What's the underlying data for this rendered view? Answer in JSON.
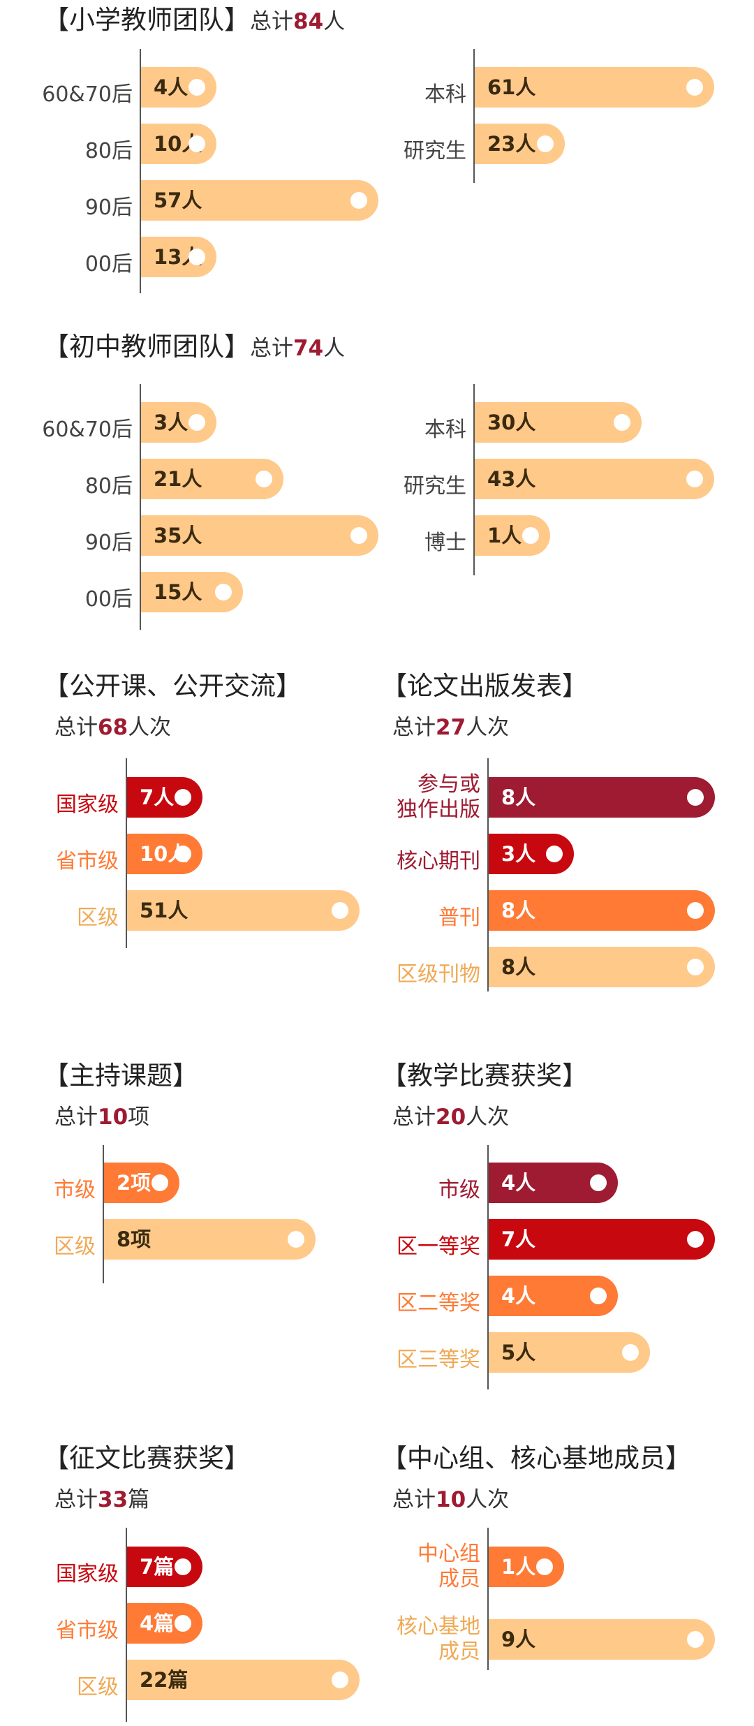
{
  "chart_data": [
    {
      "id": "primary-age",
      "type": "bar",
      "orientation": "horizontal",
      "title": "【小学教师团队】",
      "total_prefix": "总计",
      "total": "84",
      "total_suffix": "人",
      "x0": 200,
      "axisTop": 70,
      "axisBottom": 420,
      "rowTop": 96,
      "rowStep": 81,
      "scaleMax": 57,
      "maxWidth": 340,
      "items": [
        {
          "label": "60&70后",
          "value": 4,
          "value_label": "4人",
          "color": "light",
          "labelColor": "gray"
        },
        {
          "label": "80后",
          "value": 10,
          "value_label": "10人",
          "color": "light",
          "labelColor": "gray"
        },
        {
          "label": "90后",
          "value": 57,
          "value_label": "57人",
          "color": "light",
          "labelColor": "gray"
        },
        {
          "label": "00后",
          "value": 13,
          "value_label": "13人",
          "color": "light",
          "labelColor": "gray"
        }
      ]
    },
    {
      "id": "primary-edu",
      "type": "bar",
      "orientation": "horizontal",
      "x0": 678,
      "axisTop": 70,
      "axisBottom": 262,
      "rowTop": 96,
      "rowStep": 81,
      "scaleMax": 61,
      "maxWidth": 343,
      "items": [
        {
          "label": "本科",
          "value": 61,
          "value_label": "61人",
          "color": "light",
          "labelColor": "gray"
        },
        {
          "label": "研究生",
          "value": 23,
          "value_label": "23人",
          "color": "light",
          "labelColor": "gray"
        }
      ]
    },
    {
      "id": "middle-age",
      "type": "bar",
      "orientation": "horizontal",
      "title": "【初中教师团队】",
      "total_prefix": "总计",
      "total": "74",
      "total_suffix": "人",
      "x0": 200,
      "axisTop": 550,
      "axisBottom": 902,
      "rowTop": 576,
      "rowStep": 81,
      "scaleMax": 35,
      "maxWidth": 340,
      "items": [
        {
          "label": "60&70后",
          "value": 3,
          "value_label": "3人",
          "color": "light",
          "labelColor": "gray"
        },
        {
          "label": "80后",
          "value": 21,
          "value_label": "21人",
          "color": "light",
          "labelColor": "gray"
        },
        {
          "label": "90后",
          "value": 35,
          "value_label": "35人",
          "color": "light",
          "labelColor": "gray"
        },
        {
          "label": "00后",
          "value": 15,
          "value_label": "15人",
          "color": "light",
          "labelColor": "gray"
        }
      ]
    },
    {
      "id": "middle-edu",
      "type": "bar",
      "orientation": "horizontal",
      "x0": 678,
      "axisTop": 550,
      "axisBottom": 824,
      "rowTop": 576,
      "rowStep": 81,
      "scaleMax": 43,
      "maxWidth": 343,
      "items": [
        {
          "label": "本科",
          "value": 30,
          "value_label": "30人",
          "color": "light",
          "labelColor": "gray"
        },
        {
          "label": "研究生",
          "value": 43,
          "value_label": "43人",
          "color": "light",
          "labelColor": "gray"
        },
        {
          "label": "博士",
          "value": 1,
          "value_label": "1人",
          "color": "light",
          "labelColor": "gray"
        }
      ]
    },
    {
      "id": "open-class",
      "type": "bar",
      "orientation": "horizontal",
      "title": "【公开课、公开交流】",
      "total_prefix": "总计",
      "total": "68",
      "total_suffix": "人次",
      "x0": 180,
      "axisTop": 1086,
      "axisBottom": 1358,
      "rowTop": 1113,
      "rowStep": 81,
      "scaleMax": 51,
      "maxWidth": 333,
      "items": [
        {
          "label": "国家级",
          "value": 7,
          "value_label": "7人",
          "color": "red",
          "labelColor": "red"
        },
        {
          "label": "省市级",
          "value": 10,
          "value_label": "10人",
          "color": "orange",
          "labelColor": "orange"
        },
        {
          "label": "区级",
          "value": 51,
          "value_label": "51人",
          "color": "light",
          "labelColor": "light"
        }
      ]
    },
    {
      "id": "papers",
      "type": "bar",
      "orientation": "horizontal",
      "title": "【论文出版发表】",
      "total_prefix": "总计",
      "total": "27",
      "total_suffix": "人次",
      "x0": 698,
      "axisTop": 1086,
      "axisBottom": 1420,
      "rowTop": 1113,
      "rowStep": 81,
      "scaleMax": 8,
      "maxWidth": 324,
      "items": [
        {
          "label": "参与或独作出版",
          "lines": [
            "参与或",
            "独作出版"
          ],
          "value": 8,
          "value_label": "8人",
          "color": "dark",
          "labelColor": "dark"
        },
        {
          "label": "核心期刊",
          "value": 3,
          "value_label": "3人",
          "color": "red",
          "labelColor": "dark"
        },
        {
          "label": "普刊",
          "value": 8,
          "value_label": "8人",
          "color": "orange",
          "labelColor": "orange"
        },
        {
          "label": "区级刊物",
          "value": 8,
          "value_label": "8人",
          "color": "light",
          "labelColor": "light"
        }
      ]
    },
    {
      "id": "projects",
      "type": "bar",
      "orientation": "horizontal",
      "title": "【主持课题】",
      "total_prefix": "总计",
      "total": "10",
      "total_suffix": "项",
      "x0": 147,
      "axisTop": 1640,
      "axisBottom": 1838,
      "rowTop": 1665,
      "rowStep": 81,
      "scaleMax": 8,
      "maxWidth": 303,
      "items": [
        {
          "label": "市级",
          "value": 2,
          "value_label": "2项",
          "color": "orange",
          "labelColor": "orange"
        },
        {
          "label": "区级",
          "value": 8,
          "value_label": "8项",
          "color": "light",
          "labelColor": "light"
        }
      ]
    },
    {
      "id": "teaching-awards",
      "type": "bar",
      "orientation": "horizontal",
      "title": "【教学比赛获奖】",
      "total_prefix": "总计",
      "total": "20",
      "total_suffix": "人次",
      "x0": 698,
      "axisTop": 1640,
      "axisBottom": 1990,
      "rowTop": 1665,
      "rowStep": 81,
      "scaleMax": 7,
      "maxWidth": 324,
      "items": [
        {
          "label": "市级",
          "value": 4,
          "value_label": "4人",
          "color": "dark",
          "labelColor": "dark"
        },
        {
          "label": "区一等奖",
          "value": 7,
          "value_label": "7人",
          "color": "red",
          "labelColor": "red"
        },
        {
          "label": "区二等奖",
          "value": 4,
          "value_label": "4人",
          "color": "orange",
          "labelColor": "orange"
        },
        {
          "label": "区三等奖",
          "value": 5,
          "value_label": "5人",
          "color": "light",
          "labelColor": "light"
        }
      ]
    },
    {
      "id": "essay-awards",
      "type": "bar",
      "orientation": "horizontal",
      "title": "【征文比赛获奖】",
      "total_prefix": "总计",
      "total": "33",
      "total_suffix": "篇",
      "x0": 180,
      "axisTop": 2188,
      "axisBottom": 2466,
      "rowTop": 2215,
      "rowStep": 81,
      "scaleMax": 22,
      "maxWidth": 333,
      "items": [
        {
          "label": "国家级",
          "value": 7,
          "value_label": "7篇",
          "color": "red",
          "labelColor": "red"
        },
        {
          "label": "省市级",
          "value": 4,
          "value_label": "4篇",
          "color": "orange",
          "labelColor": "orange"
        },
        {
          "label": "区级",
          "value": 22,
          "value_label": "22篇",
          "color": "light",
          "labelColor": "light"
        }
      ]
    },
    {
      "id": "center-group",
      "type": "bar",
      "orientation": "horizontal",
      "title": "【中心组、核心基地成员】",
      "total_prefix": "总计",
      "total": "10",
      "total_suffix": "人次",
      "x0": 698,
      "axisTop": 2188,
      "axisBottom": 2392,
      "rowTop": 2215,
      "rowStep": 104,
      "scaleMax": 9,
      "maxWidth": 324,
      "items": [
        {
          "label": "中心组成员",
          "lines": [
            "中心组",
            "成员"
          ],
          "value": 1,
          "value_label": "1人",
          "color": "orange",
          "labelColor": "orange"
        },
        {
          "label": "核心基地成员",
          "lines": [
            "核心基地",
            "成员"
          ],
          "value": 9,
          "value_label": "9人",
          "color": "light",
          "labelColor": "light"
        }
      ]
    }
  ]
}
